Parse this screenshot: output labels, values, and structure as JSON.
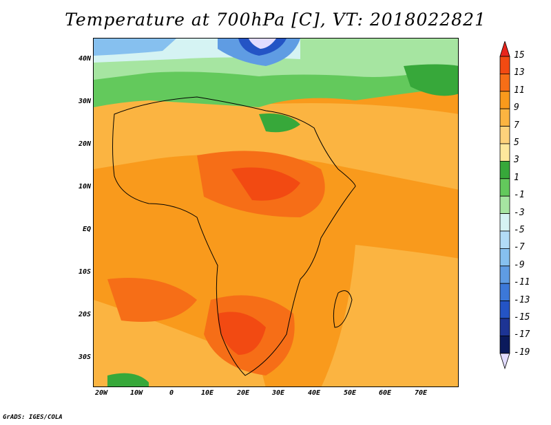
{
  "title": "Temperature at 700hPa [C], VT: 2018022821",
  "footer": "GrADS: IGES/COLA",
  "y_axis_labels": [
    "40N",
    "30N",
    "20N",
    "10N",
    "EQ",
    "10S",
    "20S",
    "30S"
  ],
  "x_axis_labels": [
    "20W",
    "10W",
    "0",
    "10E",
    "20E",
    "30E",
    "40E",
    "50E",
    "60E",
    "70E"
  ],
  "colorbar": {
    "labels": [
      "15",
      "13",
      "11",
      "9",
      "7",
      "5",
      "3",
      "1",
      "-1",
      "-3",
      "-5",
      "-7",
      "-9",
      "-11",
      "-13",
      "-15",
      "-17",
      "-19"
    ],
    "colors": [
      "#e8251c",
      "#f24a12",
      "#f66e17",
      "#f99a1c",
      "#fbb441",
      "#fdd27b",
      "#fde89c",
      "#37a83a",
      "#63c95c",
      "#a6e5a1",
      "#d5f3f3",
      "#b2dcf7",
      "#86c0ef",
      "#5f9ce3",
      "#3c78d8",
      "#2454c5",
      "#1d3494",
      "#0b1a5c",
      "#e2dcff"
    ]
  }
}
